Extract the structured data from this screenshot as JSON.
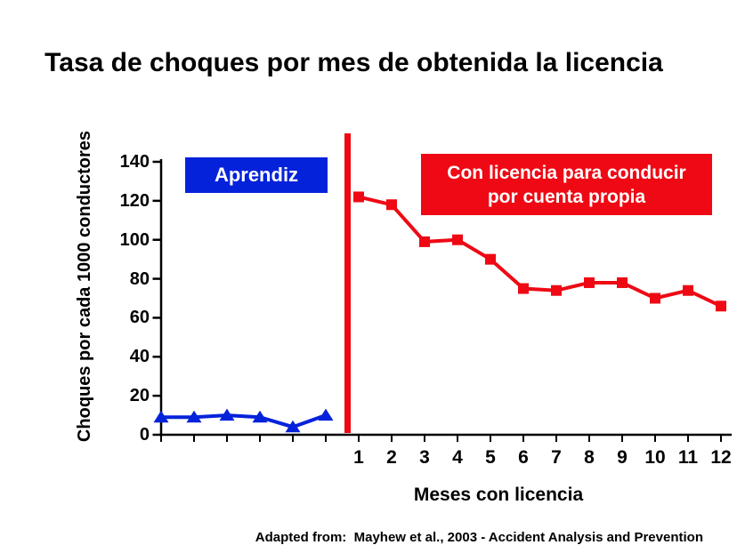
{
  "title": "Tasa de choques por mes de obtenida la licencia",
  "source_note": "Adapted from:  Mayhew et al., 2003 - Accident Analysis and Prevention",
  "colors": {
    "learner_blue": "#0522DB",
    "licensed_red": "#EE0914",
    "axis_black": "#000000",
    "separator_red": "#EE0914",
    "background": "#FFFFFF",
    "box_text": "#FFFFFF"
  },
  "annotations": {
    "learner_box_label": "Aprendiz",
    "licensed_box_line1": "Con licencia para conducir",
    "licensed_box_line2": "por cuenta propia"
  },
  "chart_data": {
    "type": "line",
    "title": "Tasa de choques por mes de obtenida la licencia",
    "xlabel": "Meses con licencia",
    "ylabel": "Choques por cada 1000 conductores",
    "ylim": [
      0,
      140
    ],
    "yticks": [
      0,
      20,
      40,
      60,
      80,
      100,
      120,
      140
    ],
    "x_slot_count": 18,
    "x_tick_labels": [
      "1",
      "2",
      "3",
      "4",
      "5",
      "6",
      "7",
      "8",
      "9",
      "10",
      "11",
      "12"
    ],
    "x_labeled_slot_start": 6,
    "grid": false,
    "legend": "inline color boxes (Aprendiz blue, licensed red)",
    "separator": {
      "description": "thick red vertical line between learner phase and licensed month 1",
      "between_slots": [
        5,
        6
      ]
    },
    "series": [
      {
        "name": "Aprendiz",
        "color": "#0522DB",
        "marker": "triangle",
        "slot_start": 0,
        "x_labels": [
          "",
          "",
          "",
          "",
          "",
          ""
        ],
        "values": [
          9,
          9,
          10,
          9,
          4,
          10
        ]
      },
      {
        "name": "Con licencia para conducir por cuenta propia",
        "color": "#EE0914",
        "marker": "square",
        "slot_start": 6,
        "x_labels": [
          "1",
          "2",
          "3",
          "4",
          "5",
          "6",
          "7",
          "8",
          "9",
          "10",
          "11",
          "12"
        ],
        "values": [
          122,
          118,
          99,
          100,
          90,
          75,
          74,
          78,
          78,
          70,
          74,
          66
        ]
      }
    ]
  }
}
